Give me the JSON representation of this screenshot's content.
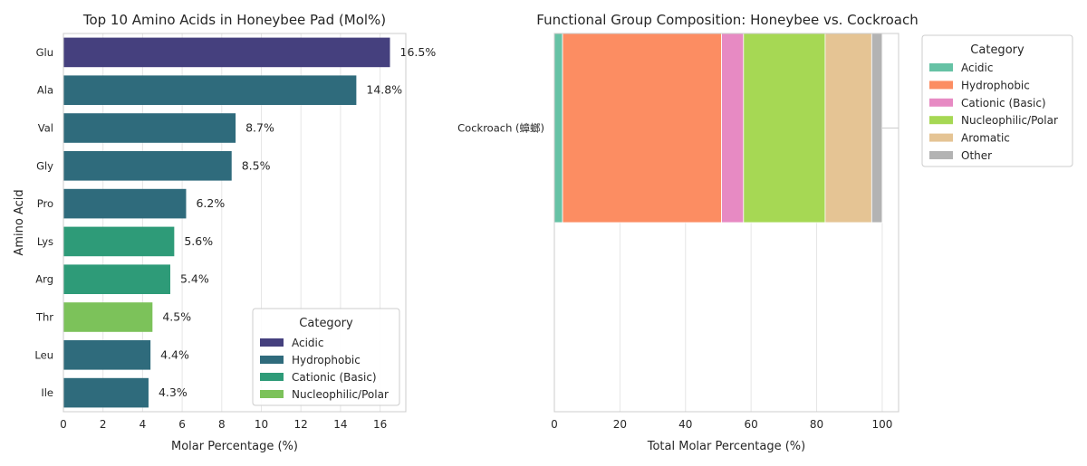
{
  "chart_data": [
    {
      "type": "bar",
      "orientation": "horizontal",
      "title": "Top 10 Amino Acids in Honeybee Pad (Mol%)",
      "xlabel": "Molar Percentage (%)",
      "ylabel": "Amino Acid",
      "xlim": [
        0,
        17.3
      ],
      "xticks": [
        "0",
        "2",
        "4",
        "6",
        "8",
        "10",
        "12",
        "14",
        "16"
      ],
      "grid": true,
      "categories": [
        "Glu",
        "Ala",
        "Val",
        "Gly",
        "Pro",
        "Lys",
        "Arg",
        "Thr",
        "Leu",
        "Ile"
      ],
      "values": [
        16.5,
        14.8,
        8.7,
        8.5,
        6.2,
        5.6,
        5.4,
        4.5,
        4.4,
        4.3
      ],
      "data_labels": [
        "16.5%",
        "14.8%",
        "8.7%",
        "8.5%",
        "6.2%",
        "5.6%",
        "5.4%",
        "4.5%",
        "4.4%",
        "4.3%"
      ],
      "bar_categories": [
        "Acidic",
        "Hydrophobic",
        "Hydrophobic",
        "Hydrophobic",
        "Hydrophobic",
        "Cationic (Basic)",
        "Cationic (Basic)",
        "Nucleophilic/Polar",
        "Hydrophobic",
        "Hydrophobic"
      ],
      "legend": {
        "title": "Category",
        "placement": "lower-right",
        "entries": [
          {
            "label": "Acidic",
            "color": "#45407e"
          },
          {
            "label": "Hydrophobic",
            "color": "#2f6b7c"
          },
          {
            "label": "Cationic (Basic)",
            "color": "#2e9b78"
          },
          {
            "label": "Nucleophilic/Polar",
            "color": "#7cc25a"
          }
        ]
      }
    },
    {
      "type": "bar",
      "orientation": "horizontal",
      "stacked": true,
      "title": "Functional Group Composition: Honeybee vs. Cockroach",
      "xlabel": "Total Molar Percentage (%)",
      "ylabel": "",
      "xlim": [
        0,
        105
      ],
      "xticks": [
        "0",
        "20",
        "40",
        "60",
        "80",
        "100"
      ],
      "grid": true,
      "categories": [
        "Cockroach (蟑螂)"
      ],
      "series": [
        {
          "name": "Acidic",
          "values": [
            2.5
          ],
          "color": "#66c2a5"
        },
        {
          "name": "Hydrophobic",
          "values": [
            48.5
          ],
          "color": "#fc8d62"
        },
        {
          "name": "Cationic (Basic)",
          "values": [
            6.7
          ],
          "color": "#e78ac3"
        },
        {
          "name": "Nucleophilic/Polar",
          "values": [
            24.9
          ],
          "color": "#a6d854"
        },
        {
          "name": "Aromatic",
          "values": [
            14.2
          ],
          "color": "#e5c494"
        },
        {
          "name": "Other",
          "values": [
            3.2
          ],
          "color": "#b3b3b3"
        }
      ],
      "legend": {
        "title": "Category",
        "placement": "outside upper-right",
        "entries": [
          "Acidic",
          "Hydrophobic",
          "Cationic (Basic)",
          "Nucleophilic/Polar",
          "Aromatic",
          "Other"
        ]
      }
    }
  ]
}
